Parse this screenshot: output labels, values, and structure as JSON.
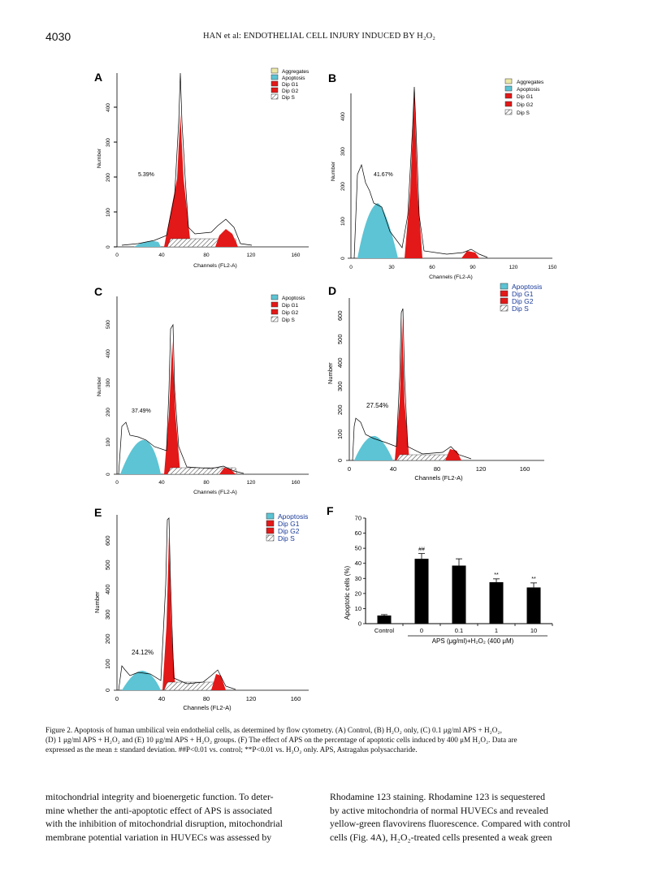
{
  "header": {
    "page_number": "4030",
    "running_title": "HAN et al: ENDOTHELIAL CELL INJURY INDUCED BY H₂O₂"
  },
  "colors": {
    "aggregates": "#ece9a8",
    "apoptosis": "#5cc4d4",
    "dip_g1": "#e31818",
    "dip_g2": "#e31818",
    "dip_s": "hatched",
    "bar": "#000000"
  },
  "panels": {
    "A": {
      "letter": "A",
      "xlabel": "Channels (FL2-A)",
      "ylabel": "Number",
      "percent": "5.39%",
      "x_ticks": [
        "0",
        "40",
        "80",
        "120",
        "160"
      ],
      "y_ticks": [
        "0",
        "100",
        "200",
        "300",
        "400"
      ],
      "legend": [
        "Aggregates",
        "Apoptosis",
        "Dip G1",
        "Dip G2",
        "Dip S"
      ]
    },
    "B": {
      "letter": "B",
      "xlabel": "Channels (FL2-A)",
      "ylabel": "Number",
      "percent": "41.67%",
      "x_ticks": [
        "0",
        "30",
        "60",
        "90",
        "120",
        "150"
      ],
      "y_ticks": [
        "0",
        "100",
        "200",
        "300",
        "400"
      ],
      "legend": [
        "Aggregates",
        "Apoptosis",
        "Dip G1",
        "Dip G2",
        "Dip S"
      ]
    },
    "C": {
      "letter": "C",
      "xlabel": "Channels (FL2-A)",
      "ylabel": "Number",
      "percent": "37.49%",
      "x_ticks": [
        "0",
        "40",
        "80",
        "120",
        "160"
      ],
      "y_ticks": [
        "0",
        "100",
        "200",
        "300",
        "400",
        "500"
      ],
      "legend": [
        "Apoptosis",
        "Dip G1",
        "Dip G2",
        "Dip S"
      ]
    },
    "D": {
      "letter": "D",
      "xlabel": "Channels (FL2-A)",
      "ylabel": "Number",
      "percent": "27.54%",
      "x_ticks": [
        "0",
        "40",
        "80",
        "120",
        "160"
      ],
      "y_ticks": [
        "0",
        "100",
        "200",
        "300",
        "400",
        "500",
        "600"
      ],
      "legend": [
        "Apoptosis",
        "Dip G1",
        "Dip G2",
        "Dip S"
      ]
    },
    "E": {
      "letter": "E",
      "xlabel": "Channels (FL2-A)",
      "ylabel": "Number",
      "percent": "24.12%",
      "x_ticks": [
        "0",
        "40",
        "80",
        "120",
        "160"
      ],
      "y_ticks": [
        "0",
        "100",
        "200",
        "300",
        "400",
        "500",
        "600"
      ],
      "legend": [
        "Apoptosis",
        "Dip G1",
        "Dip G2",
        "Dip S"
      ]
    }
  },
  "chart_data": {
    "type": "bar",
    "panel": "F",
    "categories": [
      "Control",
      "0",
      "0.1",
      "1",
      "10"
    ],
    "values": [
      5.4,
      43,
      38.5,
      27.5,
      24
    ],
    "errors": [
      0.6,
      3.5,
      4.5,
      2.2,
      3.0
    ],
    "significance": [
      "",
      "##",
      "",
      "**",
      "**"
    ],
    "ylabel": "Apoptotic cells (%)",
    "xlabel": "APS (μg/ml)+H₂O₂ (400 μM)",
    "ylim": [
      0,
      70
    ],
    "y_ticks": [
      0,
      10,
      20,
      30,
      40,
      50,
      60,
      70
    ],
    "grid": false
  },
  "caption": {
    "lines": [
      "Figure 2. Apoptosis of human umbilical vein endothelial cells, as determined by flow cytometry. (A) Control, (B) H₂O₂ only, (C) 0.1 μg/ml APS + H₂O₂,",
      "(D) 1 μg/ml APS + H₂O₂ and (E) 10 μg/ml APS + H₂O₂ groups. (F) The effect of APS on the percentage of apoptotic cells induced by 400 μM H₂O₂. Data are",
      "expressed as the mean ± standard deviation. ##P<0.01 vs. control; **P<0.01 vs. H₂O₂ only. APS, Astragalus polysaccharide."
    ]
  },
  "body_text": {
    "left_column": [
      "mitochondrial integrity and bioenergetic function. To deter-",
      "mine whether the anti-apoptotic effect of APS is associated",
      "with the inhibition of mitochondrial disruption, mitochondrial",
      "membrane potential variation in HUVECs was assessed by"
    ],
    "right_column": [
      "Rhodamine 123 staining. Rhodamine 123 is sequestered",
      "by active mitochondria of normal HUVECs and revealed",
      "yellow-green flavovirens fluorescence. Compared with control",
      "cells (Fig. 4A), H₂O₂-treated cells presented a weak green"
    ]
  }
}
